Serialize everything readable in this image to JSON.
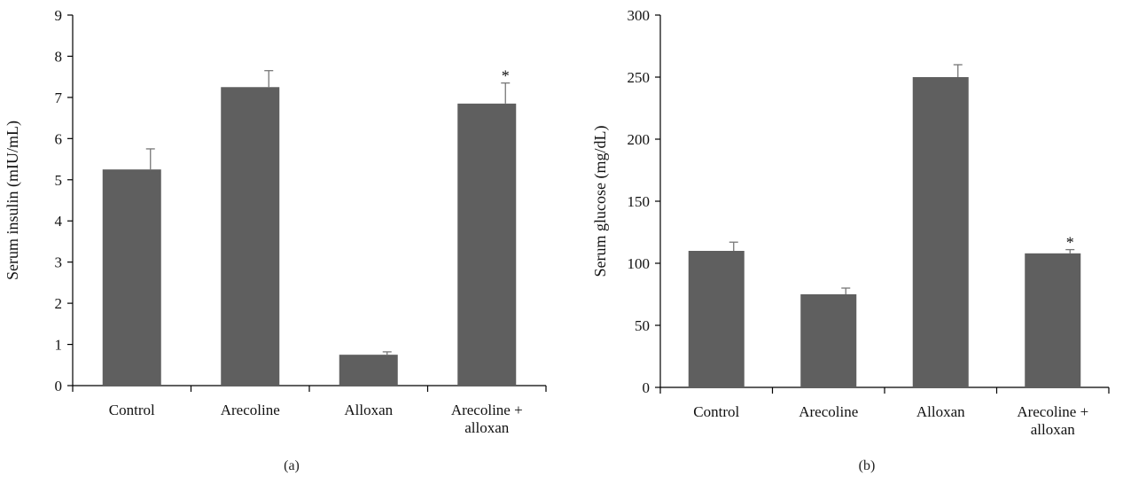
{
  "chart_data": [
    {
      "panel_label": "(a)",
      "type": "bar",
      "categories": [
        [
          "Control"
        ],
        [
          "Arecoline"
        ],
        [
          "Alloxan"
        ],
        [
          "Arecoline +",
          "alloxan"
        ]
      ],
      "values": [
        5.25,
        7.25,
        0.75,
        6.85
      ],
      "errors": [
        0.5,
        0.4,
        0.07,
        0.5
      ],
      "significance": [
        "",
        "",
        "",
        "*"
      ],
      "ylabel": "Serum insulin (mIU/mL)",
      "ylim": [
        0,
        9
      ],
      "yticks": [
        0,
        1,
        2,
        3,
        4,
        5,
        6,
        7,
        8,
        9
      ],
      "bar_color": "#5f5f5f",
      "grid": false
    },
    {
      "panel_label": "(b)",
      "type": "bar",
      "categories": [
        [
          "Control"
        ],
        [
          "Arecoline"
        ],
        [
          "Alloxan"
        ],
        [
          "Arecoline +",
          "alloxan"
        ]
      ],
      "values": [
        110,
        75,
        250,
        108
      ],
      "errors": [
        7,
        5,
        10,
        3
      ],
      "significance": [
        "",
        "",
        "",
        "*"
      ],
      "ylabel": "Serum glucose (mg/dL)",
      "ylim": [
        0,
        300
      ],
      "yticks": [
        0,
        50,
        100,
        150,
        200,
        250,
        300
      ],
      "bar_color": "#5f5f5f",
      "grid": false
    }
  ]
}
